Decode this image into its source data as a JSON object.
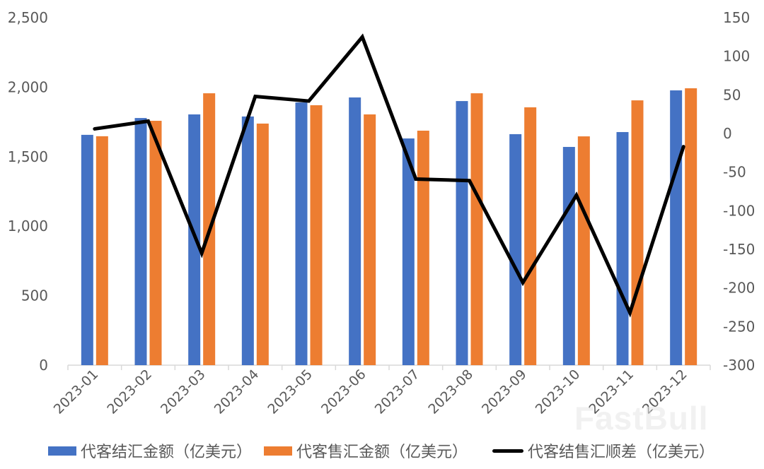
{
  "chart_data": {
    "type": "bar",
    "combo": "bar+line (dual axis)",
    "title": "",
    "xlabel": "",
    "ylabel": "",
    "categories": [
      "2023-01",
      "2023-02",
      "2023-03",
      "2023-04",
      "2023-05",
      "2023-06",
      "2023-07",
      "2023-08",
      "2023-09",
      "2023-10",
      "2023-11",
      "2023-12"
    ],
    "series": [
      {
        "name": "代客结汇金额（亿美元）",
        "type": "bar",
        "axis": "left",
        "color": "#4472c4",
        "values": [
          1657,
          1778,
          1804,
          1789,
          1890,
          1926,
          1631,
          1900,
          1662,
          1570,
          1677,
          1977
        ]
      },
      {
        "name": "代客售汇金额（亿美元）",
        "type": "bar",
        "axis": "left",
        "color": "#ed7d31",
        "values": [
          1647,
          1758,
          1956,
          1738,
          1870,
          1804,
          1687,
          1956,
          1855,
          1646,
          1905,
          1992
        ]
      },
      {
        "name": "代客结售汇顺差（亿美元）",
        "type": "line",
        "axis": "right",
        "color": "#000000",
        "values": [
          6,
          16,
          -155,
          48,
          42,
          125,
          -59,
          -61,
          -193,
          -80,
          -232,
          -17
        ]
      }
    ],
    "ylim": [
      0,
      2500
    ],
    "y_ticks": [
      "0",
      "500",
      "1,000",
      "1,500",
      "2,000",
      "2,500"
    ],
    "y2lim": [
      -300,
      150
    ],
    "y2_ticks": [
      "-300",
      "-250",
      "-200",
      "-150",
      "-100",
      "-50",
      "0",
      "50",
      "100",
      "150"
    ],
    "grid": false,
    "legend_position": "bottom"
  },
  "legend": {
    "items": [
      {
        "label": "代客结汇金额（亿美元）",
        "color": "#4472c4"
      },
      {
        "label": "代客售汇金额（亿美元）",
        "color": "#ed7d31"
      },
      {
        "label": "代客结售汇顺差（亿美元）",
        "color": "#000000"
      }
    ]
  },
  "watermark": "FastBull"
}
